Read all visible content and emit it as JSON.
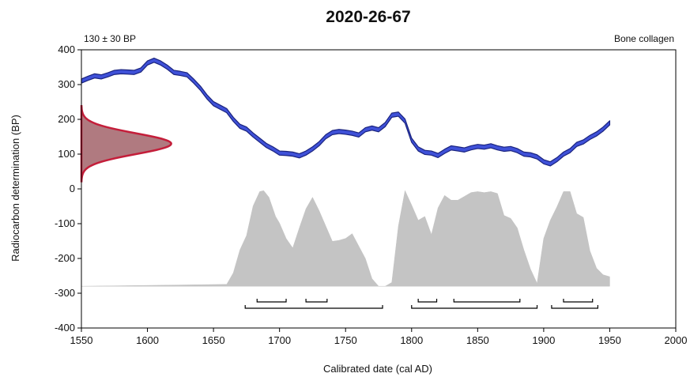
{
  "chart_data": {
    "type": "area",
    "title": "2020-26-67",
    "top_left_label": "130 ± 30 BP",
    "top_right_label": "Bone collagen",
    "xlabel": "Calibrated date (cal AD)",
    "ylabel": "Radiocarbon determination (BP)",
    "xlim": [
      1550,
      2000
    ],
    "ylim": [
      -400,
      400
    ],
    "x_ticks": [
      1550,
      1600,
      1650,
      1700,
      1750,
      1800,
      1850,
      1900,
      1950,
      2000
    ],
    "y_ticks": [
      400,
      300,
      200,
      100,
      0,
      -100,
      -200,
      -300,
      -400
    ],
    "grid": false,
    "colors": {
      "calibration_curve": "#3f51d8",
      "curve_outline": "#1a237e",
      "measurement": "#c41e3a",
      "measurement_fill": "#b07a80",
      "posterior": "#c4c4c4",
      "ranges": "#000000"
    },
    "measurement": {
      "mean": 130,
      "sd": 30,
      "height_years": 68
    },
    "calibration_curve": {
      "x": [
        1550,
        1555,
        1560,
        1565,
        1570,
        1575,
        1580,
        1585,
        1590,
        1595,
        1600,
        1605,
        1610,
        1615,
        1620,
        1625,
        1630,
        1635,
        1640,
        1645,
        1650,
        1655,
        1660,
        1665,
        1670,
        1675,
        1680,
        1685,
        1690,
        1695,
        1700,
        1705,
        1710,
        1715,
        1720,
        1725,
        1730,
        1735,
        1740,
        1745,
        1750,
        1755,
        1760,
        1765,
        1770,
        1775,
        1780,
        1785,
        1790,
        1795,
        1800,
        1805,
        1810,
        1815,
        1820,
        1825,
        1830,
        1835,
        1840,
        1845,
        1850,
        1855,
        1860,
        1865,
        1870,
        1875,
        1880,
        1885,
        1890,
        1895,
        1900,
        1905,
        1910,
        1915,
        1920,
        1925,
        1930,
        1935,
        1940,
        1945,
        1950
      ],
      "y": [
        310,
        318,
        325,
        322,
        328,
        335,
        337,
        336,
        335,
        342,
        362,
        370,
        362,
        350,
        335,
        332,
        328,
        310,
        290,
        265,
        245,
        235,
        225,
        200,
        180,
        172,
        155,
        140,
        125,
        115,
        103,
        102,
        100,
        95,
        103,
        115,
        130,
        150,
        162,
        165,
        163,
        160,
        155,
        170,
        175,
        170,
        185,
        212,
        215,
        195,
        140,
        115,
        105,
        103,
        96,
        108,
        118,
        115,
        112,
        118,
        122,
        120,
        124,
        118,
        114,
        116,
        110,
        100,
        98,
        92,
        78,
        72,
        84,
        100,
        110,
        128,
        135,
        148,
        158,
        172,
        190
      ],
      "half_width": 6
    },
    "posterior": {
      "x": [
        1660,
        1665,
        1670,
        1675,
        1680,
        1685,
        1688,
        1692,
        1697,
        1700,
        1705,
        1710,
        1715,
        1720,
        1725,
        1730,
        1735,
        1740,
        1745,
        1750,
        1755,
        1760,
        1765,
        1770,
        1775,
        1780,
        1785,
        1790,
        1795,
        1800,
        1805,
        1810,
        1815,
        1820,
        1825,
        1830,
        1835,
        1840,
        1845,
        1850,
        1855,
        1860,
        1865,
        1870,
        1875,
        1880,
        1885,
        1890,
        1895,
        1900,
        1905,
        1910,
        1915,
        1920,
        1925,
        1930,
        1935,
        1940,
        1945,
        1950
      ],
      "y": [
        0.02,
        0.14,
        0.38,
        0.53,
        0.84,
        0.99,
        1.0,
        0.93,
        0.73,
        0.66,
        0.5,
        0.4,
        0.61,
        0.81,
        0.93,
        0.79,
        0.63,
        0.47,
        0.48,
        0.5,
        0.55,
        0.42,
        0.29,
        0.08,
        0.0,
        0.0,
        0.04,
        0.63,
        1.0,
        0.85,
        0.69,
        0.73,
        0.54,
        0.82,
        0.95,
        0.9,
        0.9,
        0.94,
        0.98,
        0.99,
        0.98,
        0.99,
        0.97,
        0.74,
        0.71,
        0.61,
        0.38,
        0.18,
        0.03,
        0.5,
        0.69,
        0.83,
        0.99,
        0.99,
        0.76,
        0.72,
        0.37,
        0.19,
        0.12,
        0.1
      ]
    },
    "ranges": {
      "inner": [
        [
          1683,
          1705
        ],
        [
          1720,
          1736
        ],
        [
          1805,
          1819
        ],
        [
          1832,
          1882
        ],
        [
          1915,
          1937
        ]
      ],
      "outer": [
        [
          1674,
          1778
        ],
        [
          1800,
          1895
        ],
        [
          1906,
          1941
        ]
      ]
    }
  }
}
